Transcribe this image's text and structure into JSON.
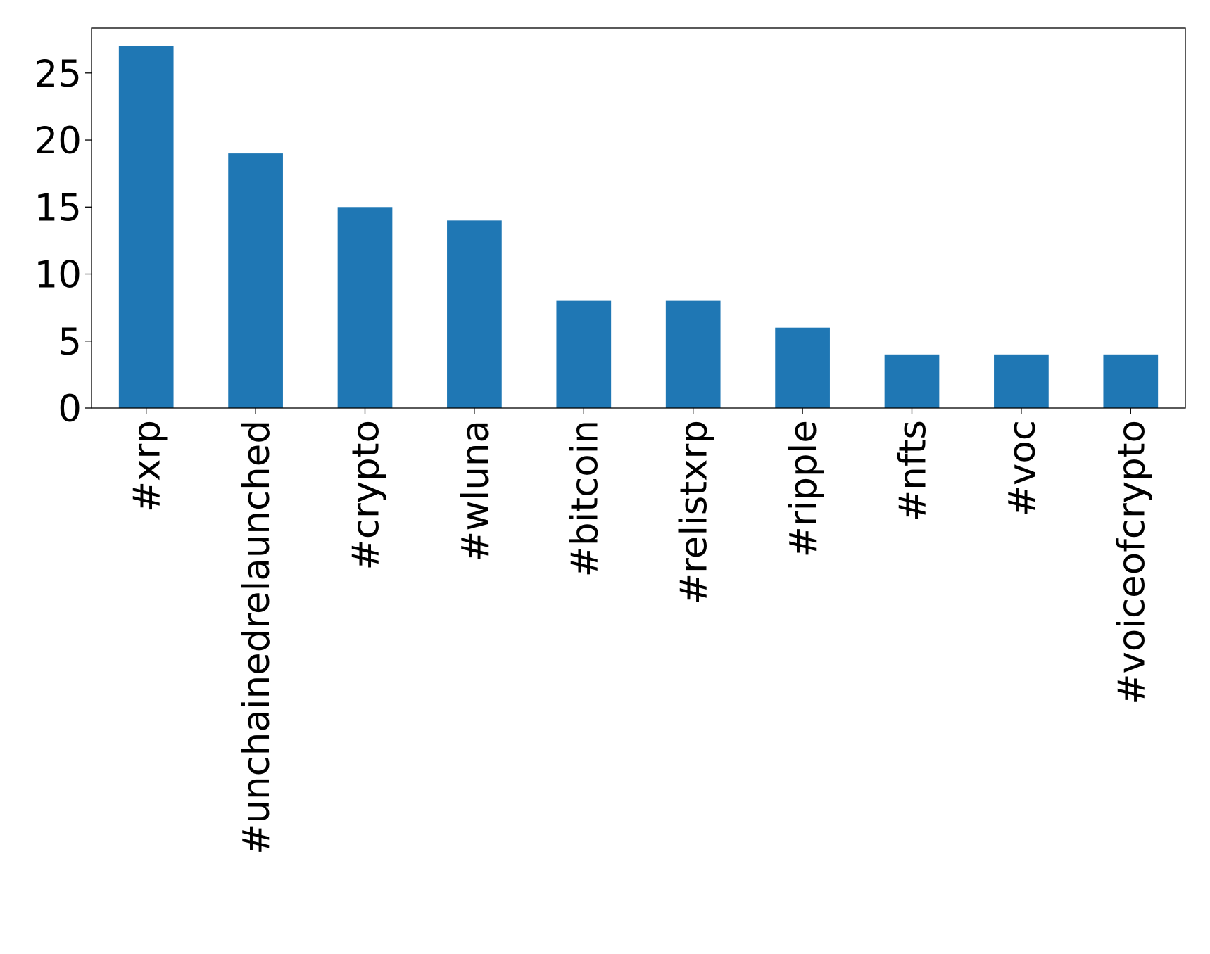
{
  "chart_data": {
    "type": "bar",
    "categories": [
      "#xrp",
      "#unchainedrelaunched",
      "#crypto",
      "#wluna",
      "#bitcoin",
      "#relistxrp",
      "#ripple",
      "#nfts",
      "#voc",
      "#voiceofcrypto"
    ],
    "values": [
      27,
      19,
      15,
      14,
      8,
      8,
      6,
      4,
      4,
      4
    ],
    "color": "#1f77b4",
    "ylim": [
      0,
      28.35
    ],
    "yticks": [
      0,
      5,
      10,
      15,
      20,
      25
    ],
    "grid": false
  }
}
